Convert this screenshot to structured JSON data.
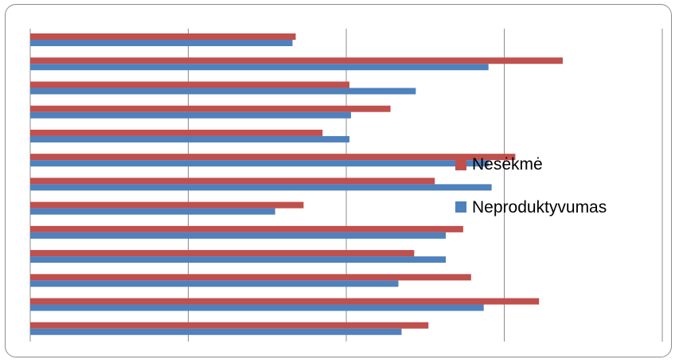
{
  "chart_data": {
    "type": "bar",
    "orientation": "horizontal",
    "title": "",
    "xlabel": "",
    "ylabel": "",
    "categories": [
      "",
      "",
      "",
      "",
      "",
      "",
      "",
      "",
      "",
      "",
      "",
      "",
      ""
    ],
    "xlim": [
      0,
      4
    ],
    "grid": true,
    "legend": "right",
    "series": [
      {
        "name": "Nesėkmė",
        "color": "#c0504d",
        "values": [
          1.68,
          3.37,
          2.02,
          2.28,
          1.85,
          3.07,
          2.56,
          1.73,
          2.74,
          2.43,
          2.79,
          3.22,
          2.52
        ]
      },
      {
        "name": "Neproduktyvumas",
        "color": "#4f81bd",
        "values": [
          1.66,
          2.9,
          2.44,
          2.03,
          2.02,
          2.9,
          2.92,
          1.55,
          2.63,
          2.63,
          2.33,
          2.87,
          2.35
        ]
      }
    ]
  }
}
